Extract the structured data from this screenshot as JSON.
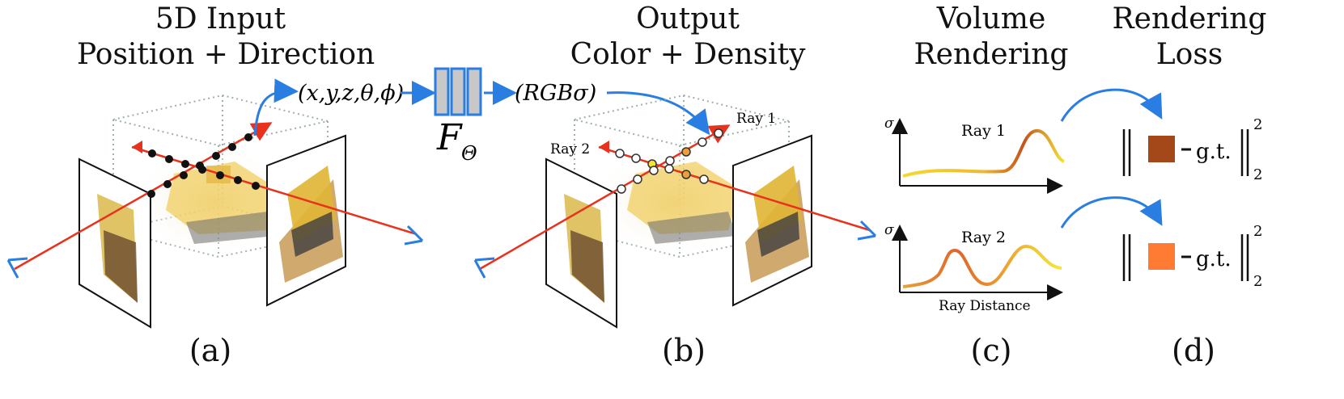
{
  "panel_a": {
    "title_line1": "5D Input",
    "title_line2": "Position + Direction",
    "input_tuple": "(x,y,z,θ,ϕ)",
    "label": "(a)"
  },
  "network": {
    "symbol": "F",
    "subscript": "Θ"
  },
  "panel_b": {
    "title_line1": "Output",
    "title_line2": "Color + Density",
    "output_tuple": "(RGBσ)",
    "ray1_label": "Ray 1",
    "ray2_label": "Ray 2",
    "label": "(b)"
  },
  "panel_c": {
    "title_line1": "Volume",
    "title_line2": "Rendering",
    "plot1_title": "Ray 1",
    "plot2_title": "Ray 2",
    "y_axis_symbol": "σ",
    "x_axis_label": "Ray Distance",
    "label": "(c)"
  },
  "panel_d": {
    "title_line1": "Rendering",
    "title_line2": "Loss",
    "gt_label": "g.t.",
    "norm_sup": "2",
    "norm_sub": "2",
    "swatch1_color": "#A4481A",
    "swatch2_color": "#FF7A33",
    "label": "(d)"
  },
  "colors": {
    "ray": "#E8321E",
    "arrow_blue": "#2A7DE1",
    "network_fill": "#C8C8C8",
    "network_stroke": "#2A7DE1",
    "box_dotted": "#9DB0AE"
  }
}
